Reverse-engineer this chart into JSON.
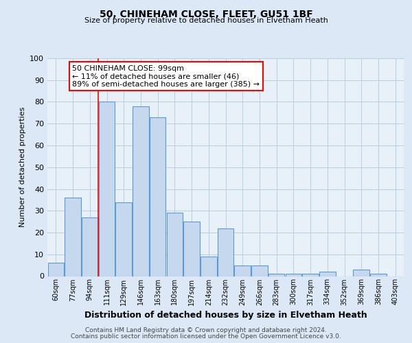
{
  "title": "50, CHINEHAM CLOSE, FLEET, GU51 1BF",
  "subtitle": "Size of property relative to detached houses in Elvetham Heath",
  "xlabel": "Distribution of detached houses by size in Elvetham Heath",
  "ylabel": "Number of detached properties",
  "bar_labels": [
    "60sqm",
    "77sqm",
    "94sqm",
    "111sqm",
    "129sqm",
    "146sqm",
    "163sqm",
    "180sqm",
    "197sqm",
    "214sqm",
    "232sqm",
    "249sqm",
    "266sqm",
    "283sqm",
    "300sqm",
    "317sqm",
    "334sqm",
    "352sqm",
    "369sqm",
    "386sqm",
    "403sqm"
  ],
  "bar_values": [
    6,
    36,
    27,
    80,
    34,
    78,
    73,
    29,
    25,
    9,
    22,
    5,
    5,
    1,
    1,
    1,
    2,
    0,
    3,
    1,
    0
  ],
  "bar_color": "#c5d8ed",
  "bar_edge_color": "#5b9bd5",
  "background_color": "#dce8f5",
  "plot_bg_color": "#e8f0f8",
  "grid_color": "#b8cde0",
  "ylim": [
    0,
    100
  ],
  "yticks": [
    0,
    10,
    20,
    30,
    40,
    50,
    60,
    70,
    80,
    90,
    100
  ],
  "red_line_x": 2.5,
  "annotation_title": "50 CHINEHAM CLOSE: 99sqm",
  "annotation_line1": "← 11% of detached houses are smaller (46)",
  "annotation_line2": "89% of semi-detached houses are larger (385) →",
  "footer_line1": "Contains HM Land Registry data © Crown copyright and database right 2024.",
  "footer_line2": "Contains public sector information licensed under the Open Government Licence v3.0."
}
